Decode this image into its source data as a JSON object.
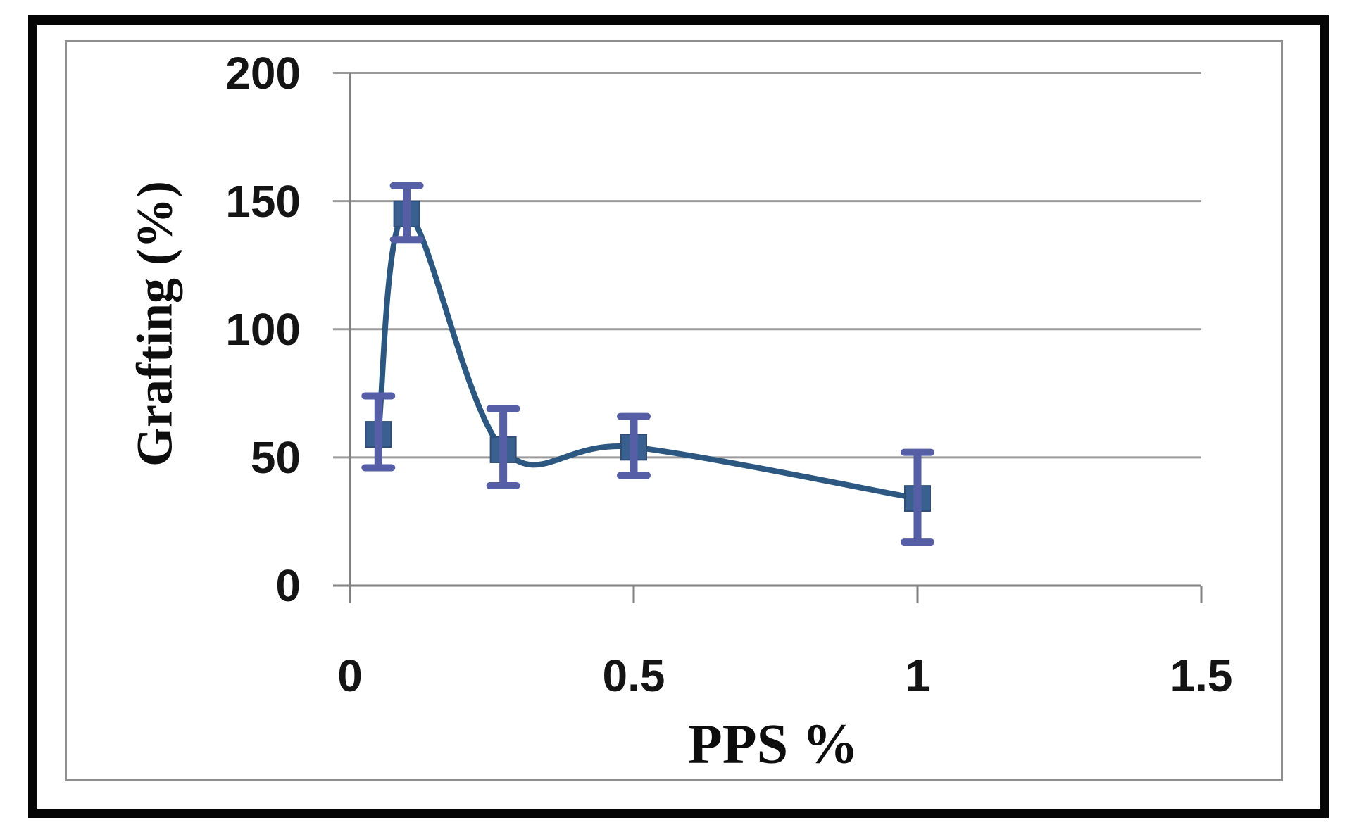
{
  "figure": {
    "x_axis_title": "PPS %",
    "y_axis_title": "Grafting (%)"
  },
  "chart_data": {
    "type": "line",
    "title": "",
    "xlabel": "PPS %",
    "ylabel": "Grafting (%)",
    "x": [
      0.05,
      0.1,
      0.27,
      0.5,
      1
    ],
    "y": [
      59,
      145,
      53,
      54,
      34
    ],
    "error_up": [
      15,
      11,
      16,
      12,
      18
    ],
    "error_down": [
      13,
      10,
      14,
      11,
      17
    ],
    "xlim": [
      0,
      1.5
    ],
    "ylim": [
      0,
      200
    ],
    "x_ticks": [
      {
        "value": 0,
        "label": "0"
      },
      {
        "value": 0.5,
        "label": "0.5"
      },
      {
        "value": 1,
        "label": "1"
      },
      {
        "value": 1.5,
        "label": "1.5"
      }
    ],
    "y_ticks": [
      {
        "value": 0,
        "label": "0"
      },
      {
        "value": 50,
        "label": "50"
      },
      {
        "value": 100,
        "label": "100"
      },
      {
        "value": 150,
        "label": "150"
      },
      {
        "value": 200,
        "label": "200"
      }
    ],
    "grid": "horizontal",
    "legend": "none",
    "line_smooth": true,
    "colors": {
      "line": "#2B5780",
      "marker": "#3A6090",
      "marker_edge": "#2F4E78",
      "error_bar": "#565FA6",
      "gridline": "#9B9B9B",
      "axis": "#828282",
      "frame_inner": "#8F8F8F",
      "frame_outer": "#050505",
      "tick_text": "#141414"
    }
  }
}
